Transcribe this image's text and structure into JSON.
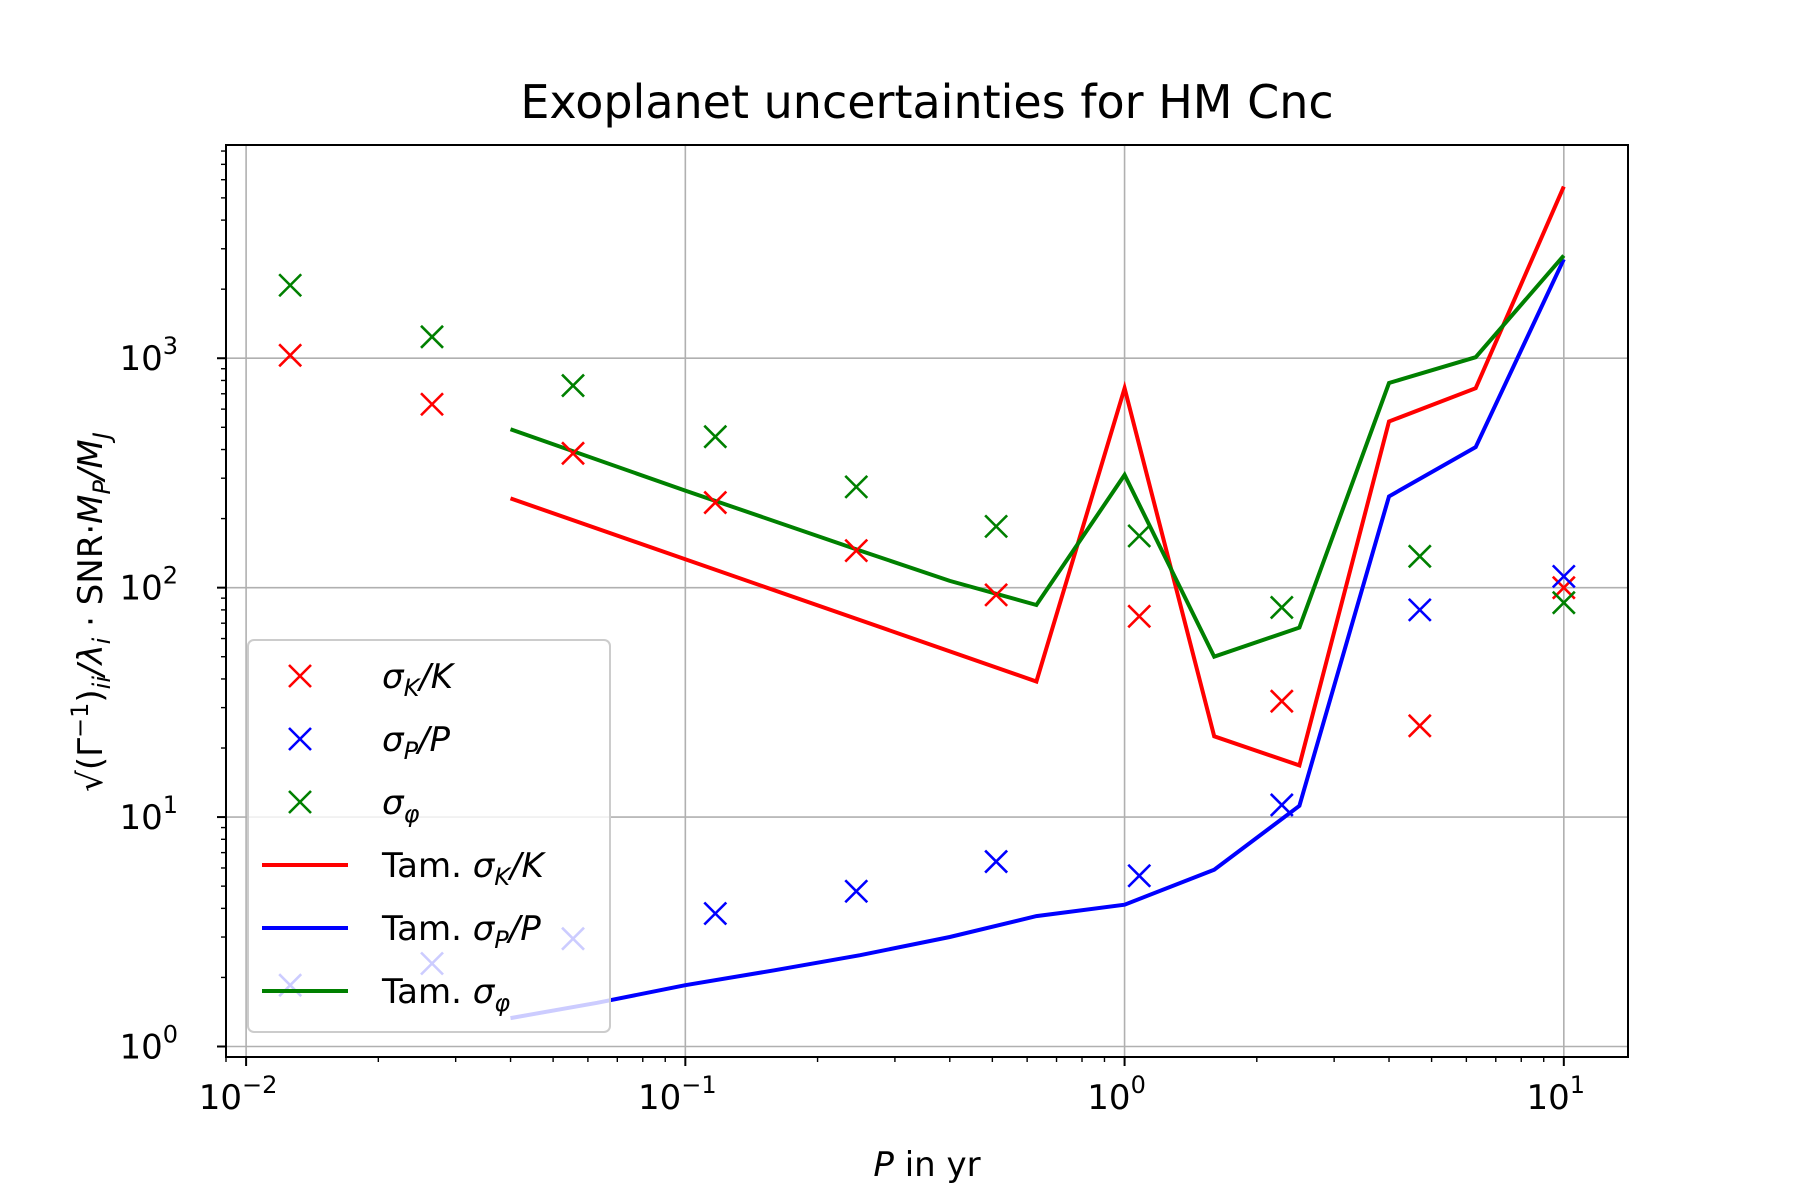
{
  "chart_data": {
    "type": "scatter+line",
    "title": "Exoplanet uncertainties for HM Cnc",
    "xlabel": "P in yr",
    "ylabel": "√(Γ⁻¹)ᵢᵢ/λᵢ · SNR·M_P/M_J",
    "x_scale": "log",
    "y_scale": "log",
    "xlim": [
      0.009,
      14
    ],
    "ylim": [
      0.9,
      8500
    ],
    "grid": true,
    "legend_position": "lower-left",
    "x_ticks": [
      {
        "value": 0.01,
        "label": "10",
        "exp": "−2"
      },
      {
        "value": 0.1,
        "label": "10",
        "exp": "−1"
      },
      {
        "value": 1,
        "label": "10",
        "exp": "0"
      },
      {
        "value": 10,
        "label": "10",
        "exp": "1"
      }
    ],
    "y_ticks": [
      {
        "value": 1,
        "label": "10",
        "exp": "0"
      },
      {
        "value": 10,
        "label": "10",
        "exp": "1"
      },
      {
        "value": 100,
        "label": "10",
        "exp": "2"
      },
      {
        "value": 1000,
        "label": "10",
        "exp": "3"
      }
    ],
    "scatter_series": [
      {
        "name": "σK/K",
        "color": "#ff0000",
        "x": [
          0.0126,
          0.0265,
          0.0555,
          0.117,
          0.245,
          0.51,
          1.08,
          2.28,
          4.7,
          10
        ],
        "y": [
          1030,
          630,
          385,
          235,
          145,
          93,
          75,
          32,
          25,
          100
        ]
      },
      {
        "name": "σP/P",
        "color": "#0000ff",
        "x": [
          0.0126,
          0.0265,
          0.0555,
          0.117,
          0.245,
          0.51,
          1.08,
          2.28,
          4.7,
          10
        ],
        "y": [
          1.85,
          2.3,
          2.95,
          3.8,
          4.75,
          6.4,
          5.55,
          11.3,
          80,
          112
        ]
      },
      {
        "name": "σφ",
        "color": "#008000",
        "x": [
          0.0126,
          0.0265,
          0.0555,
          0.117,
          0.245,
          0.51,
          1.08,
          2.28,
          4.7,
          10
        ],
        "y": [
          2080,
          1240,
          760,
          455,
          275,
          185,
          168,
          82,
          137,
          86
        ]
      }
    ],
    "line_series": [
      {
        "name": "Tam. σK/K",
        "color": "#ff0000",
        "x": [
          0.04,
          0.63,
          1.0,
          1.6,
          2.5,
          4.0,
          6.3,
          10
        ],
        "y": [
          245,
          39,
          740,
          22.5,
          16.8,
          530,
          740,
          5600
        ]
      },
      {
        "name": "Tam. σP/P",
        "color": "#0000ff",
        "x": [
          0.04,
          0.063,
          0.1,
          0.16,
          0.25,
          0.4,
          0.63,
          1.0,
          1.6,
          2.5,
          4.0,
          6.3,
          10
        ],
        "y": [
          1.33,
          1.55,
          1.85,
          2.15,
          2.5,
          3.0,
          3.7,
          4.15,
          5.9,
          11.2,
          250,
          410,
          2700
        ]
      },
      {
        "name": "Tam. σφ",
        "color": "#008000",
        "x": [
          0.04,
          0.1,
          0.25,
          0.4,
          0.63,
          1.0,
          1.6,
          2.5,
          4.0,
          6.3,
          10
        ],
        "y": [
          490,
          265,
          145,
          107,
          84,
          310,
          50,
          67,
          780,
          1010,
          2800
        ]
      }
    ],
    "legend": [
      {
        "kind": "marker",
        "color": "#ff0000",
        "text": "σ",
        "sub": "K",
        "tail": "/K"
      },
      {
        "kind": "marker",
        "color": "#0000ff",
        "text": "σ",
        "sub": "P",
        "tail": "/P"
      },
      {
        "kind": "marker",
        "color": "#008000",
        "text": "σ",
        "sub": "φ",
        "tail": ""
      },
      {
        "kind": "line",
        "color": "#ff0000",
        "text": "Tam. σ",
        "sub": "K",
        "tail": "/K"
      },
      {
        "kind": "line",
        "color": "#0000ff",
        "text": "Tam. σ",
        "sub": "P",
        "tail": "/P"
      },
      {
        "kind": "line",
        "color": "#008000",
        "text": "Tam. σ",
        "sub": "φ",
        "tail": ""
      }
    ]
  }
}
